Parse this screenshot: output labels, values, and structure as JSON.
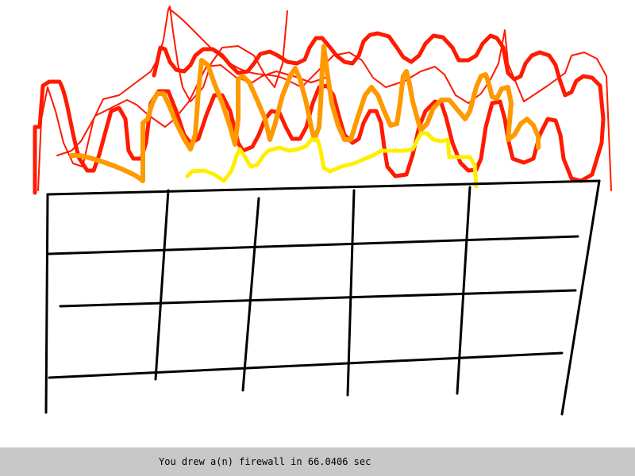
{
  "drawing": {
    "subject": "firewall",
    "colors": {
      "background": "#ffffff",
      "wall_lines": "#000000",
      "flame_outer": "#ff1a00",
      "flame_middle": "#ff9900",
      "flame_inner": "#ffee00"
    }
  },
  "status_bar": {
    "message": "You drew a(n) firewall in 66.0406 sec",
    "background": "#c8c8c8"
  }
}
